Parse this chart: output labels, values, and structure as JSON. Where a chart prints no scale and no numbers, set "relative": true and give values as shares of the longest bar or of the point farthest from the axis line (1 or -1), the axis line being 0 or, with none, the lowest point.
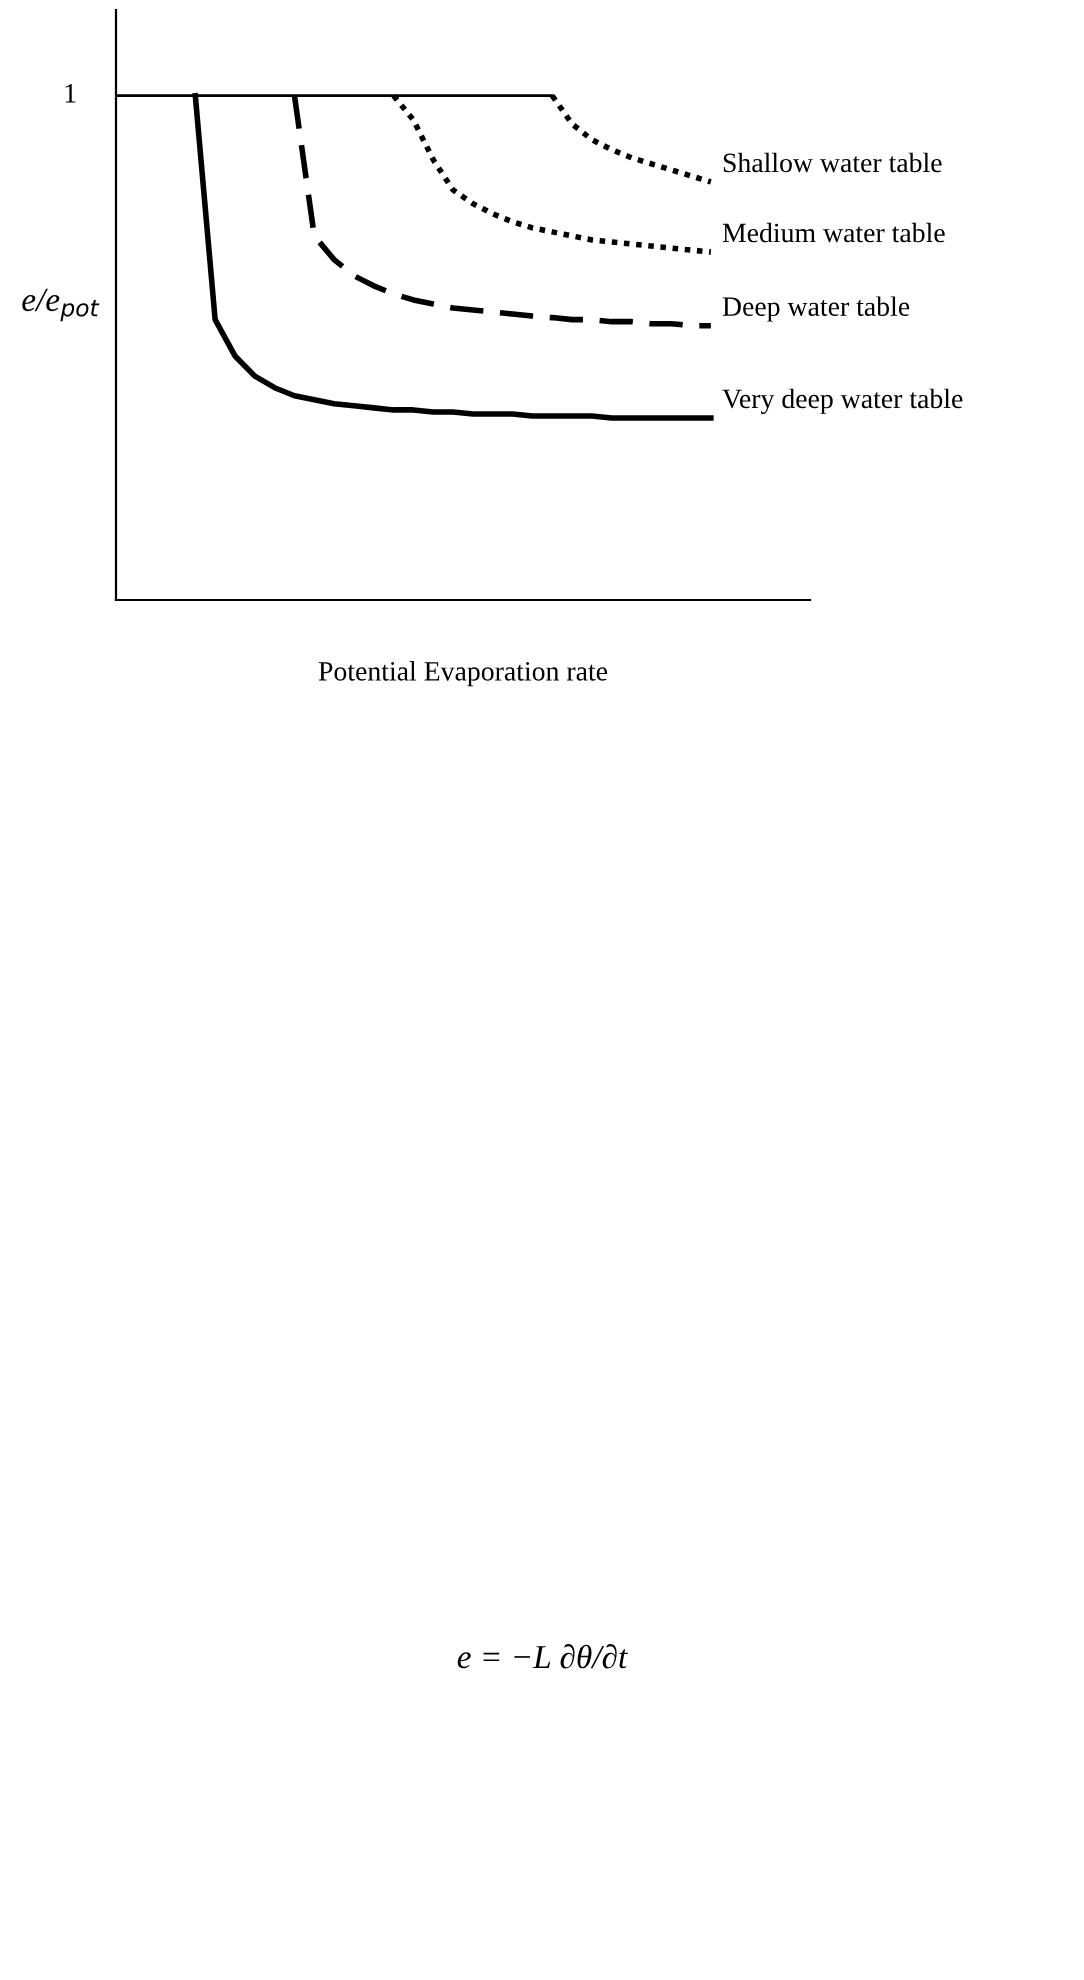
{
  "chart_data": {
    "type": "line",
    "relative": true,
    "xlabel": "Potential Evaporation rate",
    "ylabel": "e/e$_{pot}$",
    "legend": false,
    "categories": [
      null,
      null,
      null,
      null,
      null,
      null,
      null,
      null,
      null,
      null,
      null,
      null,
      null,
      null,
      null,
      null,
      null,
      null,
      null,
      null,
      null,
      null,
      null,
      null,
      null,
      null,
      null,
      null,
      null,
      null,
      null,
      null,
      null,
      null,
      null,
      null
    ],
    "series": [
      {
        "color": "#000000",
        "line_style": "solid",
        "values": [
          1,
          1,
          1,
          1,
          1,
          1,
          1,
          1,
          1,
          1,
          1,
          1,
          1,
          1,
          1,
          1,
          1,
          1,
          1,
          1,
          1,
          1,
          1,
          null,
          null,
          null,
          null,
          null,
          null,
          null,
          null,
          null,
          null,
          null,
          null,
          null
        ]
      },
      {
        "name": "Shallow water table",
        "color": "#000000",
        "line_style": "dotted",
        "values": [
          null,
          null,
          null,
          null,
          null,
          null,
          null,
          null,
          null,
          null,
          null,
          null,
          null,
          null,
          null,
          null,
          null,
          null,
          null,
          null,
          null,
          null,
          1,
          0.944,
          0.913,
          0.893,
          0.877,
          0.865,
          0.853,
          0.841,
          0.829,
          null,
          null,
          null,
          null,
          null
        ]
      },
      {
        "name": "Medium water table",
        "color": "#000000",
        "line_style": "dotted",
        "values": [
          null,
          null,
          null,
          null,
          null,
          null,
          null,
          null,
          null,
          null,
          null,
          null,
          null,
          null,
          1,
          0.952,
          0.873,
          0.813,
          0.786,
          0.766,
          0.75,
          0.738,
          0.73,
          0.722,
          0.714,
          0.71,
          0.706,
          0.702,
          0.698,
          0.694,
          0.69,
          null,
          null,
          null,
          null,
          null
        ]
      },
      {
        "name": "Deep water table",
        "color": "#000000",
        "line_style": "dashed",
        "values": [
          null,
          null,
          null,
          null,
          null,
          null,
          null,
          null,
          null,
          1,
          0.722,
          0.675,
          0.643,
          0.623,
          0.607,
          0.595,
          0.587,
          0.579,
          0.575,
          0.571,
          0.567,
          0.563,
          0.56,
          0.556,
          0.556,
          0.552,
          0.552,
          0.548,
          0.548,
          0.544,
          0.544,
          null,
          null,
          null,
          null,
          null
        ]
      },
      {
        "name": "Very deep water table",
        "color": "#000000",
        "line_style": "solid",
        "values": [
          null,
          null,
          null,
          null,
          1,
          0.556,
          0.484,
          0.444,
          0.421,
          0.405,
          0.397,
          0.389,
          0.385,
          0.381,
          0.377,
          0.377,
          0.373,
          0.373,
          0.369,
          0.369,
          0.369,
          0.365,
          0.365,
          0.365,
          0.365,
          0.361,
          0.361,
          0.361,
          0.361,
          0.361,
          0.361,
          null,
          null,
          null,
          null,
          null
        ]
      }
    ],
    "annotations": [
      "1",
      "e = −L ∂θ/∂t"
    ]
  }
}
